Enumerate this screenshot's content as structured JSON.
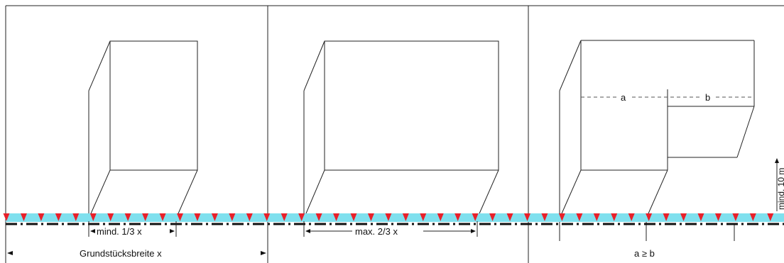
{
  "labels": {
    "min_width": "mind. 1/3 x",
    "max_width": "max. 2/3 x",
    "plot_width": "Grundstücksbreite x",
    "dim_a": "a",
    "dim_b": "b",
    "rule_ab": "a ≥ b",
    "min_depth": "mind. 10 m"
  },
  "colors": {
    "strip": "#7fe0ee",
    "marker": "#e8202a",
    "line": "#222222"
  }
}
